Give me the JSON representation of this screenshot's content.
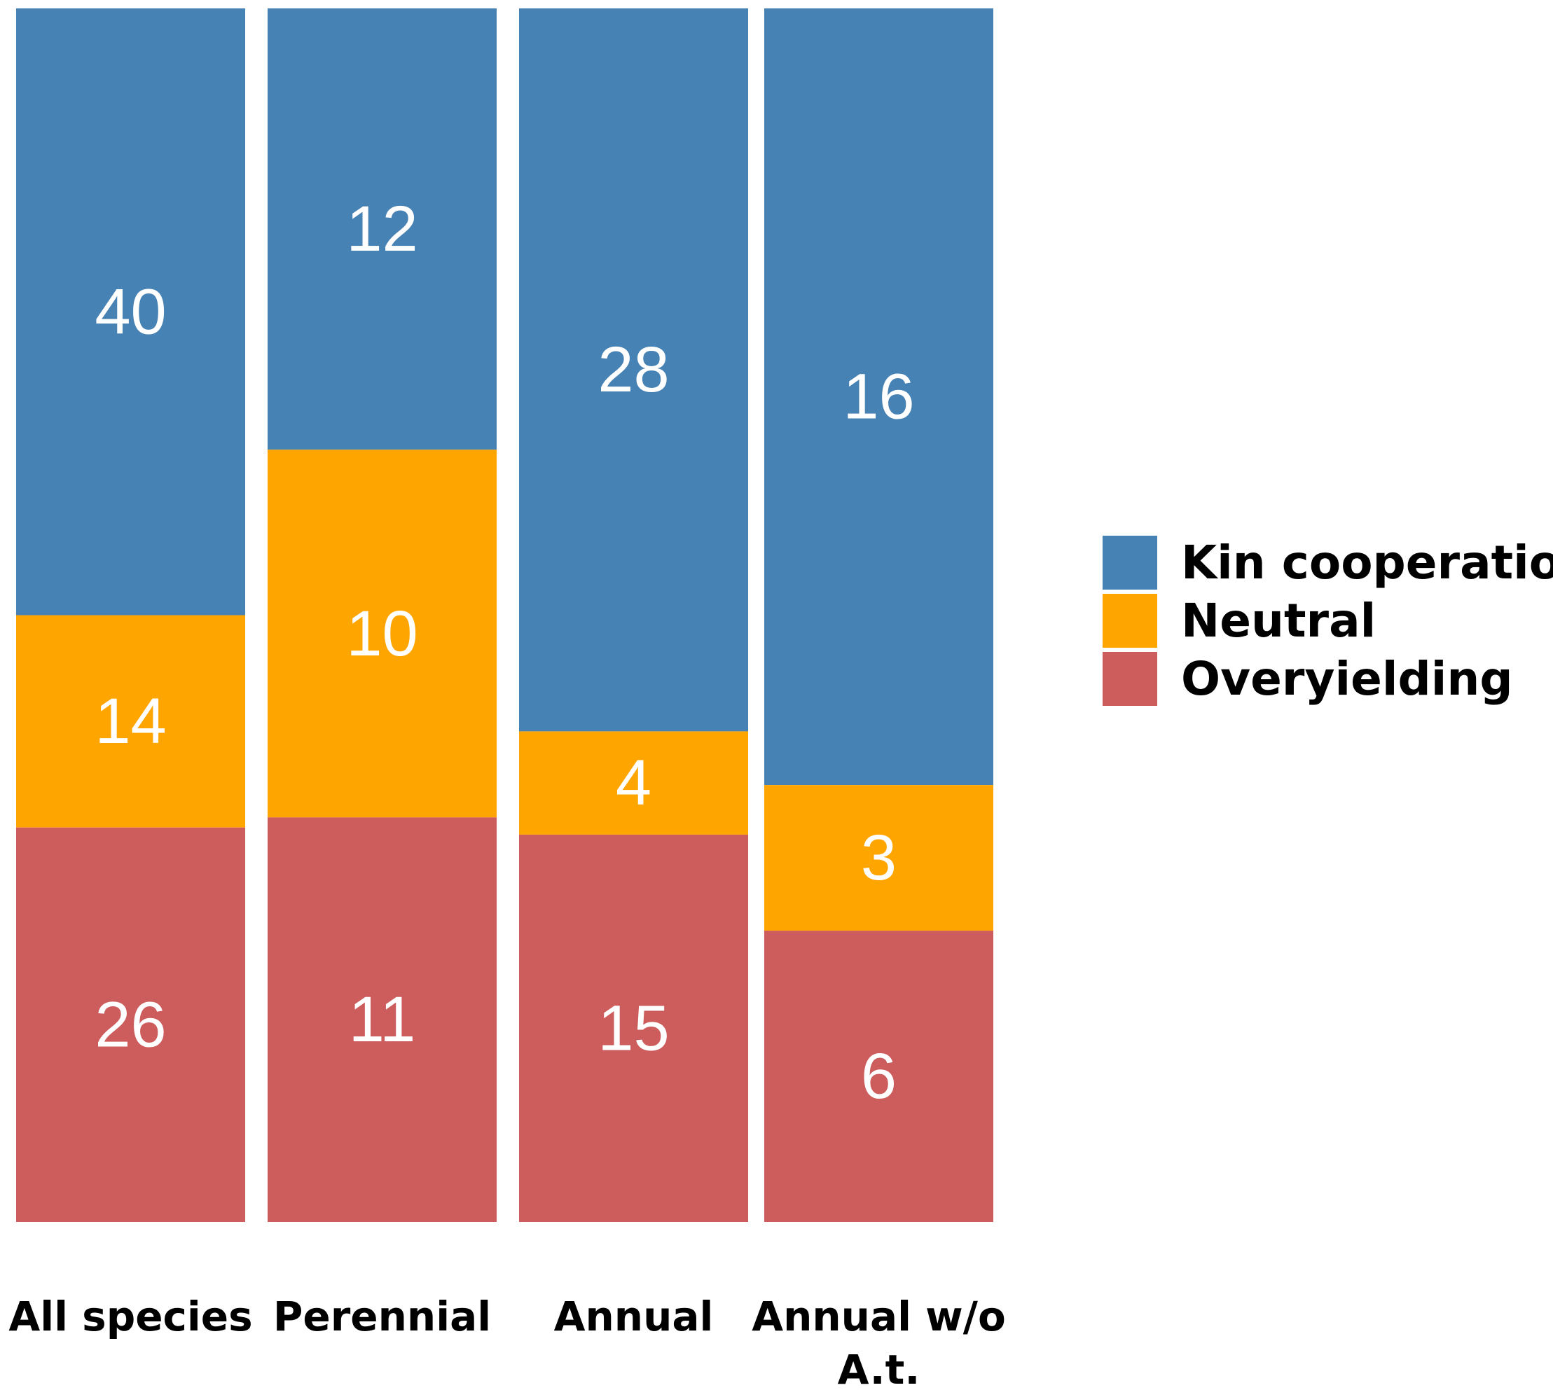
{
  "chart_data": {
    "type": "bar",
    "stacked": true,
    "normalized": true,
    "categories": [
      "All species",
      "Perennial",
      "Annual",
      "Annual w/o A.t."
    ],
    "category_lines": [
      [
        "All species"
      ],
      [
        "Perennial"
      ],
      [
        "Annual"
      ],
      [
        "Annual w/o",
        "A.t."
      ]
    ],
    "series": [
      {
        "name": "Kin cooperation",
        "color": "#4682b4",
        "values": [
          40,
          12,
          28,
          16
        ]
      },
      {
        "name": "Neutral",
        "color": "#ffa500",
        "values": [
          14,
          10,
          4,
          3
        ]
      },
      {
        "name": "Overyielding",
        "color": "#cd5c5c",
        "values": [
          26,
          11,
          15,
          6
        ]
      }
    ],
    "title": "",
    "xlabel": "",
    "ylabel": "",
    "legend": "right",
    "grid": false
  }
}
